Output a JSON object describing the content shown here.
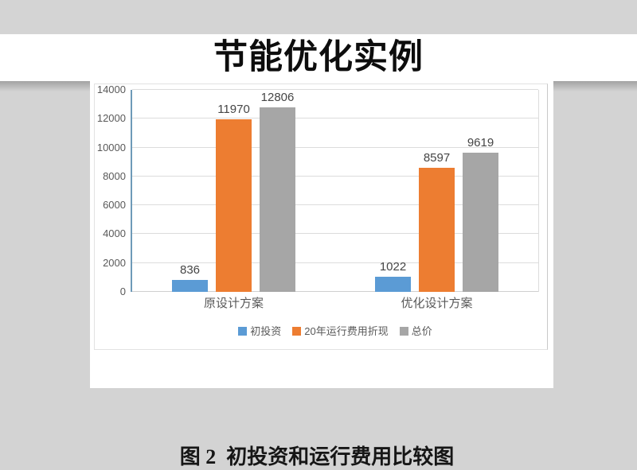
{
  "slide": {
    "title": "节能优化实例",
    "caption": "图 2  初投资和运行费用比较图"
  },
  "chart_data": {
    "type": "bar",
    "categories": [
      "原设计方案",
      "优化设计方案"
    ],
    "series": [
      {
        "name": "初投资",
        "color": "#5b9bd5",
        "values": [
          836,
          1022
        ]
      },
      {
        "name": "20年运行费用折现",
        "color": "#ed7d31",
        "values": [
          11970,
          8597
        ]
      },
      {
        "name": "总价",
        "color": "#a6a6a6",
        "values": [
          12806,
          9619
        ]
      }
    ],
    "title": "",
    "xlabel": "",
    "ylabel": "",
    "ylim": [
      0,
      14000
    ],
    "ytick_step": 2000,
    "yticks": [
      0,
      2000,
      4000,
      6000,
      8000,
      10000,
      12000,
      14000
    ],
    "grid": true,
    "legend_position": "bottom",
    "value_labels": true
  },
  "colors": {
    "backdrop": "#d3d3d3",
    "page": "#ffffff",
    "axis_line": "#6e9ab8",
    "gridline": "#dcdcdc",
    "tick_text": "#595959",
    "value_text": "#454545",
    "title_text": "#0d0d0d",
    "caption_text": "#161616"
  }
}
